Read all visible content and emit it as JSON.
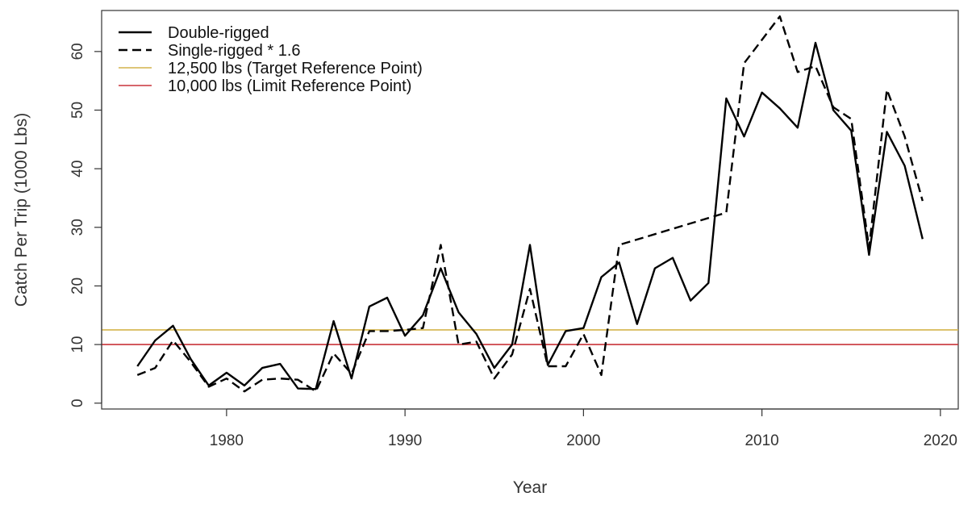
{
  "chart_data": {
    "type": "line",
    "title": "",
    "xlabel": "Year",
    "ylabel": "Catch Per Trip (1000 Lbs)",
    "xlim": [
      1973,
      2021
    ],
    "ylim": [
      -1,
      67
    ],
    "xticks": [
      1980,
      1990,
      2000,
      2010,
      2020
    ],
    "yticks": [
      0,
      10,
      20,
      30,
      40,
      50,
      60
    ],
    "grid": false,
    "legend_position": "top-left",
    "series": [
      {
        "name": "Double-rigged",
        "style": "solid",
        "color": "#000000",
        "points": [
          [
            1975,
            6.3
          ],
          [
            1976,
            10.7
          ],
          [
            1977,
            13.2
          ],
          [
            1978,
            7.5
          ],
          [
            1979,
            3.0
          ],
          [
            1980,
            5.2
          ],
          [
            1981,
            3.0
          ],
          [
            1982,
            6.0
          ],
          [
            1983,
            6.7
          ],
          [
            1984,
            2.5
          ],
          [
            1985,
            2.4
          ],
          [
            1986,
            14.0
          ],
          [
            1987,
            4.2
          ],
          [
            1988,
            16.5
          ],
          [
            1989,
            18.0
          ],
          [
            1990,
            11.5
          ],
          [
            1991,
            15.0
          ],
          [
            1992,
            23.0
          ],
          [
            1993,
            15.5
          ],
          [
            1994,
            11.8
          ],
          [
            1995,
            6.0
          ],
          [
            1996,
            10.0
          ],
          [
            1997,
            27.0
          ],
          [
            1998,
            6.5
          ],
          [
            1999,
            12.3
          ],
          [
            2000,
            12.8
          ],
          [
            2001,
            21.5
          ],
          [
            2002,
            24.0
          ],
          [
            2003,
            13.5
          ],
          [
            2004,
            23.0
          ],
          [
            2005,
            24.8
          ],
          [
            2006,
            17.5
          ],
          [
            2007,
            20.5
          ],
          [
            2008,
            52.0
          ],
          [
            2009,
            45.5
          ],
          [
            2010,
            53.0
          ],
          [
            2011,
            50.3
          ],
          [
            2012,
            47.0
          ],
          [
            2013,
            61.5
          ],
          [
            2014,
            50.0
          ],
          [
            2015,
            46.5
          ],
          [
            2016,
            25.3
          ],
          [
            2017,
            46.3
          ],
          [
            2018,
            40.5
          ],
          [
            2019,
            28.0
          ]
        ]
      },
      {
        "name": "Single-rigged * 1.6",
        "style": "dashed",
        "color": "#000000",
        "points": [
          [
            1975,
            4.8
          ],
          [
            1976,
            6.0
          ],
          [
            1977,
            10.7
          ],
          [
            1978,
            7.0
          ],
          [
            1979,
            2.8
          ],
          [
            1980,
            4.2
          ],
          [
            1981,
            2.0
          ],
          [
            1982,
            4.0
          ],
          [
            1983,
            4.2
          ],
          [
            1984,
            4.0
          ],
          [
            1985,
            2.0
          ],
          [
            1986,
            8.5
          ],
          [
            1987,
            5.0
          ],
          [
            1988,
            12.3
          ],
          [
            1989,
            12.3
          ],
          [
            1990,
            12.5
          ],
          [
            1991,
            12.8
          ],
          [
            1992,
            27.0
          ],
          [
            1993,
            10.0
          ],
          [
            1994,
            10.5
          ],
          [
            1995,
            4.2
          ],
          [
            1996,
            8.3
          ],
          [
            1997,
            19.5
          ],
          [
            1998,
            6.3
          ],
          [
            1999,
            6.3
          ],
          [
            2000,
            11.8
          ],
          [
            2001,
            4.8
          ],
          [
            2002,
            27.0
          ],
          [
            2008,
            32.5
          ],
          [
            2009,
            58.0
          ],
          [
            2011,
            66.0
          ],
          [
            2012,
            56.5
          ],
          [
            2013,
            57.5
          ],
          [
            2014,
            50.5
          ],
          [
            2015,
            48.5
          ],
          [
            2016,
            26.5
          ],
          [
            2017,
            53.5
          ],
          [
            2018,
            45.5
          ],
          [
            2019,
            34.5
          ]
        ]
      }
    ],
    "reference_lines": [
      {
        "name": "12,500 lbs (Target Reference Point)",
        "y": 12.5,
        "color": "#d4b44c"
      },
      {
        "name": "10,000 lbs (Limit Reference Point)",
        "y": 10.0,
        "color": "#c8343a"
      }
    ]
  }
}
